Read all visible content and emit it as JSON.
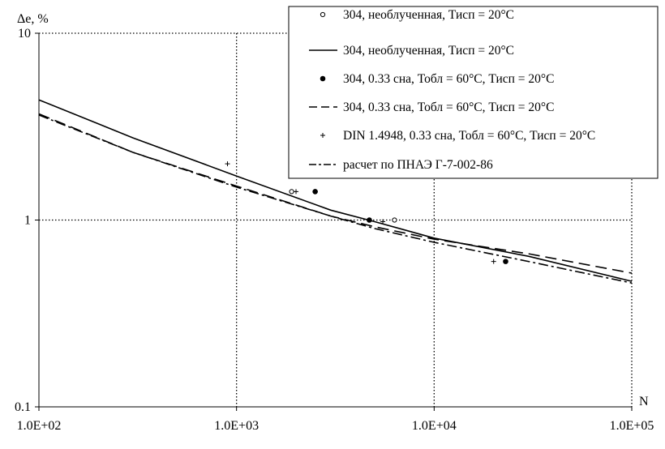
{
  "chart_data": {
    "type": "line",
    "xlabel": "N",
    "ylabel": "Δe, %",
    "x_scale": "log",
    "y_scale": "log",
    "xlim": [
      100,
      100000
    ],
    "ylim": [
      0.1,
      10
    ],
    "x_ticks": [
      {
        "value": 100,
        "label": "1.0E+02"
      },
      {
        "value": 1000,
        "label": "1.0E+03"
      },
      {
        "value": 10000,
        "label": "1.0E+04"
      },
      {
        "value": 100000,
        "label": "1.0E+05"
      }
    ],
    "y_ticks": [
      {
        "value": 0.1,
        "label": "0.1"
      },
      {
        "value": 1,
        "label": "1"
      },
      {
        "value": 10,
        "label": "10"
      }
    ],
    "grid": "dotted at major ticks",
    "legend_position": "top-right",
    "series": [
      {
        "name": "304, необлученная, Тисп = 20°C",
        "style": "open-circle",
        "points": [
          [
            1900,
            1.42
          ],
          [
            2500,
            1.42
          ],
          [
            6300,
            1.0
          ]
        ]
      },
      {
        "name": "304, необлученная, Тисп = 20°C",
        "style": "solid",
        "points": [
          [
            100,
            4.4
          ],
          [
            300,
            2.75
          ],
          [
            1000,
            1.72
          ],
          [
            3000,
            1.13
          ],
          [
            5000,
            0.98
          ],
          [
            10000,
            0.8
          ],
          [
            30000,
            0.64
          ],
          [
            100000,
            0.47
          ]
        ]
      },
      {
        "name": "304, 0.33 сна, Тобл = 60°C, Тисп = 20°C",
        "style": "filled-circle",
        "points": [
          [
            2500,
            1.42
          ],
          [
            4700,
            1.0
          ],
          [
            23000,
            0.6
          ]
        ]
      },
      {
        "name": "304, 0.33 сна, Тобл = 60°C, Тисп = 20°C",
        "style": "dashed",
        "points": [
          [
            100,
            3.7
          ],
          [
            300,
            2.3
          ],
          [
            1000,
            1.52
          ],
          [
            3000,
            1.05
          ],
          [
            5000,
            0.92
          ],
          [
            10000,
            0.79
          ],
          [
            30000,
            0.66
          ],
          [
            100000,
            0.52
          ]
        ]
      },
      {
        "name": "DIN 1.4948, 0.33 сна, Тобл = 60°C, Тисп = 20°C",
        "style": "plus",
        "points": [
          [
            900,
            2.0
          ],
          [
            2000,
            1.42
          ],
          [
            5500,
            0.98
          ],
          [
            20000,
            0.6
          ]
        ]
      },
      {
        "name": "расчет по ПНАЭ Г-7-002-86",
        "style": "dash-dot",
        "points": [
          [
            100,
            3.65
          ],
          [
            300,
            2.3
          ],
          [
            1000,
            1.5
          ],
          [
            3000,
            1.05
          ],
          [
            5000,
            0.9
          ],
          [
            10000,
            0.76
          ],
          [
            30000,
            0.6
          ],
          [
            100000,
            0.46
          ]
        ]
      }
    ]
  }
}
